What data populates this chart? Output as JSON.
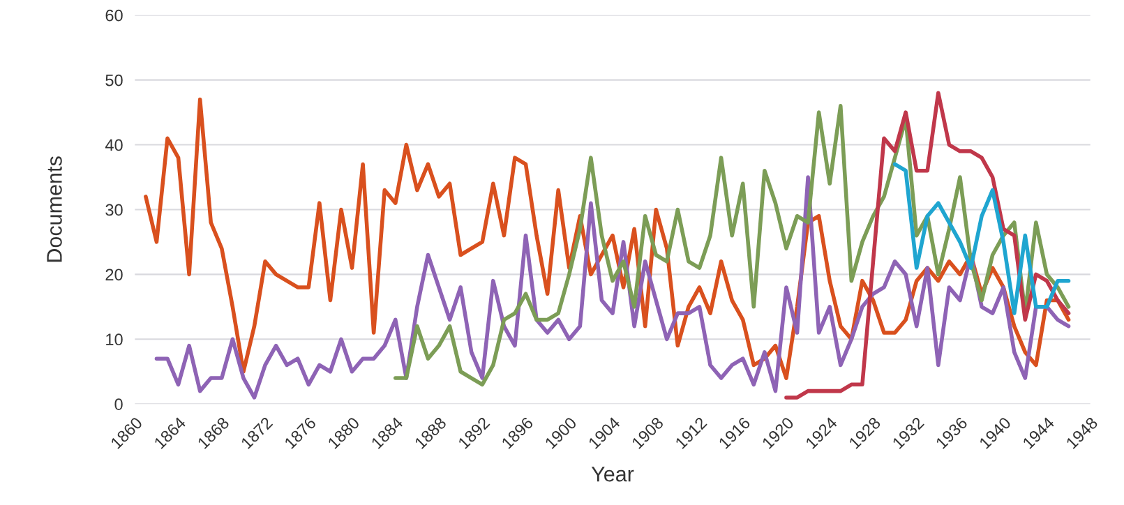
{
  "chart_data": {
    "type": "line",
    "xlabel": "Year",
    "ylabel": "Documents",
    "xlim": [
      1860,
      1948
    ],
    "xticks": [
      1860,
      1864,
      1868,
      1872,
      1876,
      1880,
      1884,
      1888,
      1892,
      1896,
      1900,
      1904,
      1908,
      1912,
      1916,
      1920,
      1924,
      1928,
      1932,
      1936,
      1940,
      1944,
      1948
    ],
    "ylim": [
      0,
      60
    ],
    "yticks": [
      0,
      10,
      20,
      30,
      40,
      50,
      60
    ],
    "grid": "y",
    "legend": false,
    "marker": "none",
    "line_style": "solid",
    "series": [
      {
        "color": "#d9501e",
        "x": [
          1861,
          1862,
          1863,
          1864,
          1865,
          1866,
          1867,
          1868,
          1869,
          1870,
          1871,
          1872,
          1873,
          1874,
          1875,
          1876,
          1877,
          1878,
          1879,
          1880,
          1881,
          1882,
          1883,
          1884,
          1885,
          1886,
          1887,
          1888,
          1889,
          1890,
          1891,
          1892,
          1893,
          1894,
          1895,
          1896,
          1897,
          1898,
          1899,
          1900,
          1901,
          1902,
          1903,
          1904,
          1905,
          1906,
          1907,
          1908,
          1909,
          1910,
          1911,
          1912,
          1913,
          1914,
          1915,
          1916,
          1917,
          1918,
          1919,
          1920,
          1921,
          1922,
          1923,
          1924,
          1925,
          1926,
          1927,
          1928,
          1929,
          1930,
          1931,
          1932,
          1933,
          1934,
          1935,
          1936,
          1937,
          1938,
          1939,
          1940,
          1941,
          1942,
          1943,
          1944,
          1945,
          1946
        ],
        "values": [
          32,
          25,
          41,
          38,
          20,
          47,
          28,
          24,
          15,
          5,
          12,
          22,
          20,
          19,
          18,
          18,
          31,
          16,
          30,
          21,
          37,
          11,
          33,
          31,
          40,
          33,
          37,
          32,
          34,
          23,
          24,
          25,
          34,
          26,
          38,
          37,
          26,
          17,
          33,
          21,
          29,
          20,
          23,
          26,
          18,
          27,
          12,
          30,
          24,
          9,
          15,
          18,
          14,
          22,
          16,
          13,
          6,
          7,
          9,
          4,
          15,
          28,
          29,
          19,
          12,
          10,
          19,
          16,
          11,
          11,
          13,
          19,
          21,
          19,
          22,
          20,
          23,
          17,
          21,
          18,
          12,
          8,
          6,
          16,
          16,
          13
        ]
      },
      {
        "color": "#8e63b5",
        "x": [
          1862,
          1863,
          1864,
          1865,
          1866,
          1867,
          1868,
          1869,
          1870,
          1871,
          1872,
          1873,
          1874,
          1875,
          1876,
          1877,
          1878,
          1879,
          1880,
          1881,
          1882,
          1883,
          1884,
          1885,
          1886,
          1887,
          1888,
          1889,
          1890,
          1891,
          1892,
          1893,
          1894,
          1895,
          1896,
          1897,
          1898,
          1899,
          1900,
          1901,
          1902,
          1903,
          1904,
          1905,
          1906,
          1907,
          1908,
          1909,
          1910,
          1911,
          1912,
          1913,
          1914,
          1915,
          1916,
          1917,
          1918,
          1919,
          1920,
          1921,
          1922,
          1923,
          1924,
          1925,
          1926,
          1927,
          1928,
          1929,
          1930,
          1931,
          1932,
          1933,
          1934,
          1935,
          1936,
          1937,
          1938,
          1939,
          1940,
          1941,
          1942,
          1943,
          1944,
          1945,
          1946
        ],
        "values": [
          7,
          7,
          3,
          9,
          2,
          4,
          4,
          10,
          4,
          1,
          6,
          9,
          6,
          7,
          3,
          6,
          5,
          10,
          5,
          7,
          7,
          9,
          13,
          4,
          15,
          23,
          18,
          13,
          18,
          8,
          4,
          19,
          12,
          9,
          26,
          13,
          11,
          13,
          10,
          12,
          31,
          16,
          14,
          25,
          12,
          22,
          16,
          10,
          14,
          14,
          15,
          6,
          4,
          6,
          7,
          3,
          8,
          2,
          18,
          11,
          35,
          11,
          15,
          6,
          10,
          15,
          17,
          18,
          22,
          20,
          12,
          21,
          6,
          18,
          16,
          23,
          15,
          14,
          18,
          8,
          4,
          15,
          15,
          13,
          12
        ]
      },
      {
        "color": "#7c9d56",
        "x": [
          1884,
          1885,
          1886,
          1887,
          1888,
          1889,
          1890,
          1891,
          1892,
          1893,
          1894,
          1895,
          1896,
          1897,
          1898,
          1899,
          1900,
          1901,
          1902,
          1903,
          1904,
          1905,
          1906,
          1907,
          1908,
          1909,
          1910,
          1911,
          1912,
          1913,
          1914,
          1915,
          1916,
          1917,
          1918,
          1919,
          1920,
          1921,
          1922,
          1923,
          1924,
          1925,
          1926,
          1927,
          1928,
          1929,
          1930,
          1931,
          1932,
          1933,
          1934,
          1935,
          1936,
          1937,
          1938,
          1939,
          1940,
          1941,
          1942,
          1943,
          1944,
          1945,
          1946
        ],
        "values": [
          4,
          4,
          12,
          7,
          9,
          12,
          5,
          4,
          3,
          6,
          13,
          14,
          17,
          13,
          13,
          14,
          20,
          27,
          38,
          26,
          19,
          22,
          15,
          29,
          23,
          22,
          30,
          22,
          21,
          26,
          38,
          26,
          34,
          15,
          36,
          31,
          24,
          29,
          28,
          45,
          34,
          46,
          19,
          25,
          29,
          32,
          38,
          44,
          26,
          29,
          20,
          27,
          35,
          22,
          16,
          23,
          26,
          28,
          14,
          28,
          20,
          18,
          15
        ]
      },
      {
        "color": "#c0374a",
        "x": [
          1920,
          1921,
          1922,
          1923,
          1924,
          1925,
          1926,
          1927,
          1928,
          1929,
          1930,
          1931,
          1932,
          1933,
          1934,
          1935,
          1936,
          1937,
          1938,
          1939,
          1940,
          1941,
          1942,
          1943,
          1944,
          1945,
          1946
        ],
        "values": [
          1,
          1,
          2,
          2,
          2,
          2,
          3,
          3,
          22,
          41,
          39,
          45,
          36,
          36,
          48,
          40,
          39,
          39,
          38,
          35,
          27,
          26,
          13,
          20,
          19,
          16,
          14
        ]
      },
      {
        "color": "#1fa5d0",
        "x": [
          1930,
          1931,
          1932,
          1933,
          1934,
          1935,
          1936,
          1937,
          1938,
          1939,
          1940,
          1941,
          1942,
          1943,
          1944,
          1945,
          1946
        ],
        "values": [
          37,
          36,
          21,
          29,
          31,
          28,
          25,
          21,
          29,
          33,
          25,
          14,
          26,
          15,
          15,
          19,
          19
        ]
      }
    ]
  }
}
